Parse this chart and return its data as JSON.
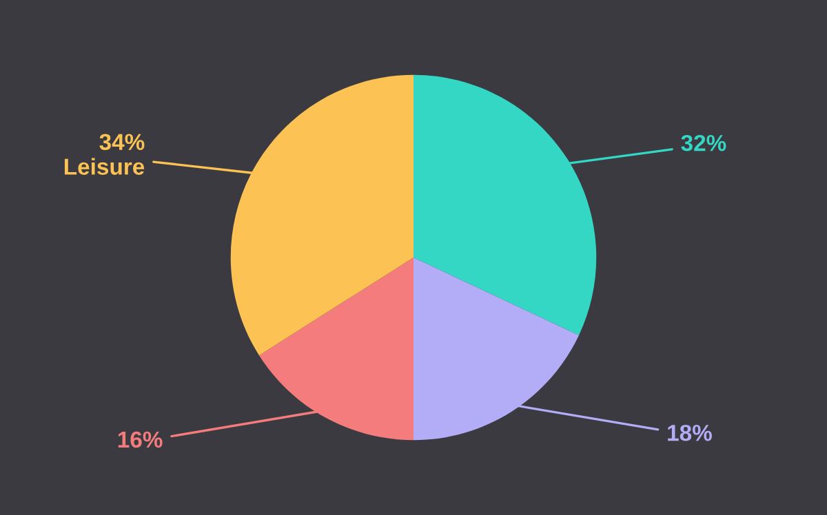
{
  "chart_data": {
    "type": "pie",
    "categories": [
      null,
      null,
      null,
      "Leisure"
    ],
    "values": [
      32,
      18,
      16,
      34
    ],
    "value_labels": [
      "32%",
      "18%",
      "16%",
      "34%"
    ],
    "colors": [
      "#34d6c4",
      "#b3adf8",
      "#f47c7c",
      "#fcc253"
    ]
  }
}
